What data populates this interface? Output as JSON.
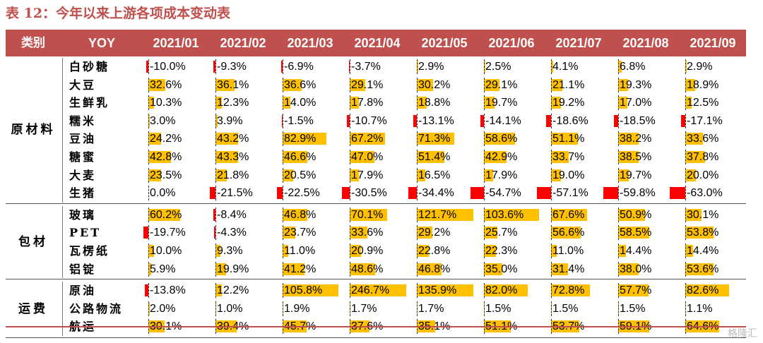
{
  "title": "表 12：今年以来上游各项成本变动表",
  "header": {
    "category": "类别",
    "yoy": "YOY",
    "months": [
      "2021/01",
      "2021/02",
      "2021/03",
      "2021/04",
      "2021/05",
      "2021/06",
      "2021/07",
      "2021/08",
      "2021/09"
    ]
  },
  "groups": [
    {
      "name": "原材料",
      "rows": [
        {
          "item": "白砂糖",
          "values": [
            "-10.0%",
            "-9.3%",
            "-6.9%",
            "-3.7%",
            "2.9%",
            "2.5%",
            "4.1%",
            "6.8%",
            "2.9%"
          ]
        },
        {
          "item": "大豆",
          "values": [
            "32.6%",
            "36.1%",
            "36.6%",
            "29.1%",
            "30.2%",
            "29.1%",
            "21.1%",
            "19.3%",
            "18.9%"
          ]
        },
        {
          "item": "生鲜乳",
          "values": [
            "10.3%",
            "12.3%",
            "14.0%",
            "17.8%",
            "18.8%",
            "19.7%",
            "19.2%",
            "17.0%",
            "12.5%"
          ]
        },
        {
          "item": "糯米",
          "values": [
            "3.0%",
            "3.9%",
            "-1.5%",
            "-10.7%",
            "-13.1%",
            "-14.1%",
            "-18.6%",
            "-18.5%",
            "-17.1%"
          ]
        },
        {
          "item": "豆油",
          "values": [
            "24.2%",
            "43.2%",
            "82.9%",
            "67.2%",
            "71.3%",
            "58.6%",
            "51.1%",
            "38.2%",
            "33.6%"
          ]
        },
        {
          "item": "糖蜜",
          "values": [
            "42.8%",
            "43.3%",
            "46.6%",
            "47.0%",
            "51.4%",
            "42.9%",
            "33.7%",
            "38.5%",
            "37.8%"
          ]
        },
        {
          "item": "大麦",
          "values": [
            "23.5%",
            "21.8%",
            "20.5%",
            "17.9%",
            "16.5%",
            "17.9%",
            "19.0%",
            "19.7%",
            "20.0%"
          ]
        },
        {
          "item": "生猪",
          "values": [
            "0.0%",
            "-21.5%",
            "-22.5%",
            "-30.5%",
            "-34.4%",
            "-54.7%",
            "-57.1%",
            "-59.8%",
            "-63.0%"
          ]
        }
      ]
    },
    {
      "name": "包材",
      "rows": [
        {
          "item": "玻璃",
          "values": [
            "60.2%",
            "-8.4%",
            "46.8%",
            "70.1%",
            "121.7%",
            "103.6%",
            "67.6%",
            "50.9%",
            "30.1%"
          ]
        },
        {
          "item": "PET",
          "values": [
            "-19.7%",
            "-4.3%",
            "23.7%",
            "33.6%",
            "29.2%",
            "25.7%",
            "56.6%",
            "58.5%",
            "53.8%"
          ]
        },
        {
          "item": "瓦楞纸",
          "values": [
            "10.0%",
            "9.3%",
            "11.0%",
            "20.9%",
            "22.8%",
            "22.3%",
            "11.0%",
            "14.4%",
            "14.4%"
          ]
        },
        {
          "item": "铝锭",
          "values": [
            "5.9%",
            "19.9%",
            "41.2%",
            "48.6%",
            "46.8%",
            "35.0%",
            "31.4%",
            "38.0%",
            "53.6%"
          ]
        }
      ]
    },
    {
      "name": "运费",
      "rows": [
        {
          "item": "原油",
          "values": [
            "-13.8%",
            "12.2%",
            "105.8%",
            "246.7%",
            "135.9%",
            "82.0%",
            "72.8%",
            "57.7%",
            "82.6%"
          ]
        },
        {
          "item": "公路物流",
          "values": [
            "2.0%",
            "1.0%",
            "1.9%",
            "1.7%",
            "1.7%",
            "1.5%",
            "1.5%",
            "1.5%",
            "1.1%"
          ]
        },
        {
          "item": "航运",
          "values": [
            "30.1%",
            "39.4%",
            "45.7%",
            "37.6%",
            "35.1%",
            "51.1%",
            "53.7%",
            "59.1%",
            "64.6%"
          ]
        }
      ]
    }
  ],
  "colors": {
    "header": "#c0504d",
    "positive_bar": "#ffc000",
    "negative_bar": "#ff0000"
  },
  "watermark": "格隆汇"
}
